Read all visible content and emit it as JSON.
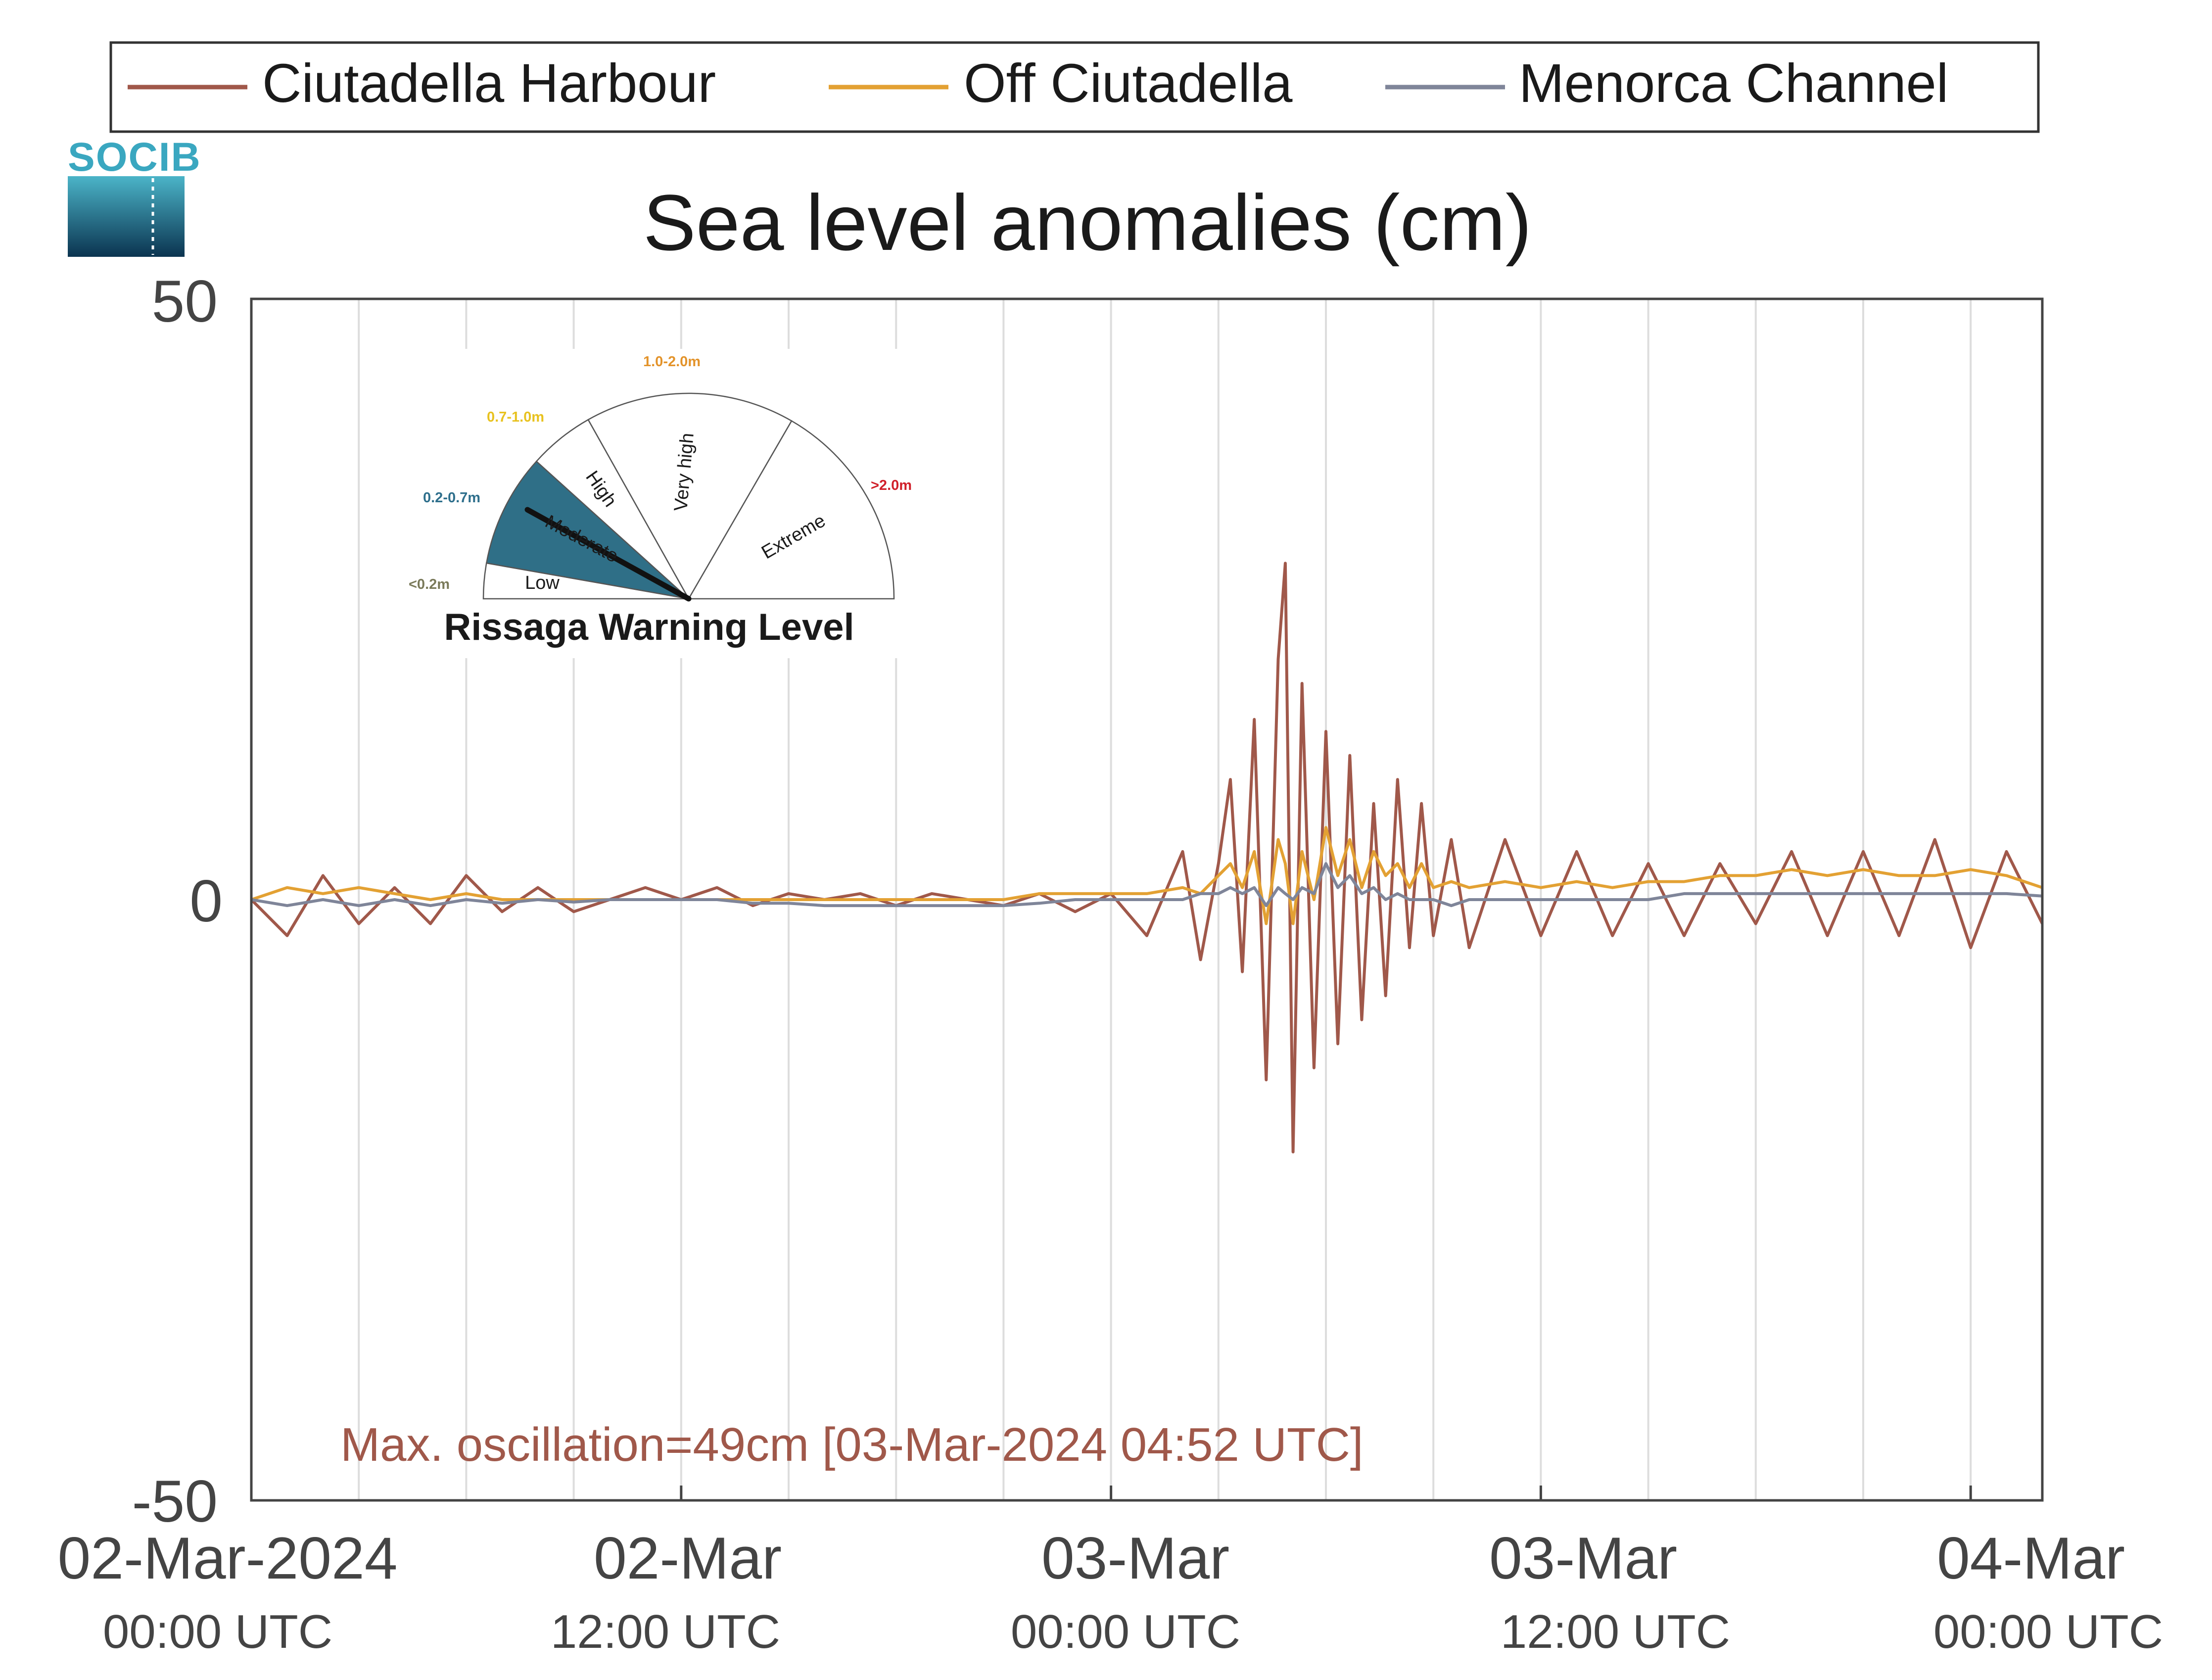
{
  "logo": {
    "text": "SOCIB",
    "color_top": "#3aa7c0",
    "color_bottom": "#0d3a55"
  },
  "legend": {
    "placement": "top",
    "items": [
      {
        "label": "Ciutadella Harbour",
        "color": "#a0584a"
      },
      {
        "label": "Off Ciutadella",
        "color": "#e3a133"
      },
      {
        "label": "Menorca Channel",
        "color": "#7f8599"
      }
    ]
  },
  "gauge": {
    "title": "Rissaga Warning Level",
    "current_level": "Moderate",
    "levels": [
      {
        "name": "Low",
        "range": "<0.2m",
        "range_color": "#7a7a5a"
      },
      {
        "name": "Moderate",
        "range": "0.2-0.7m",
        "range_color": "#2e6f8c",
        "fill": "#2f6f87"
      },
      {
        "name": "High",
        "range": "0.7-1.0m",
        "range_color": "#e8c21f"
      },
      {
        "name": "Very high",
        "range": "1.0-2.0m",
        "range_color": "#e3932a"
      },
      {
        "name": "Extreme",
        "range": ">2.0m",
        "range_color": "#d0202a"
      }
    ]
  },
  "annotation": {
    "text": "Max. oscillation=49cm [03-Mar-2024 04:52 UTC]",
    "color": "#a0584a"
  },
  "chart_data": {
    "type": "line",
    "title": "Sea level anomalies (cm)",
    "xlabel": "",
    "ylabel": "",
    "ylim": [
      -50,
      50
    ],
    "xlim": [
      "2024-03-02 00:00",
      "2024-03-04 02:00"
    ],
    "yticks": [
      "50",
      "0",
      "-50"
    ],
    "xticks": [
      {
        "at": "2024-03-02 00:00",
        "line1": "02-Mar-2024",
        "line2": "00:00 UTC"
      },
      {
        "at": "2024-03-02 12:00",
        "line1": "02-Mar",
        "line2": "12:00 UTC"
      },
      {
        "at": "2024-03-03 00:00",
        "line1": "03-Mar",
        "line2": "00:00 UTC"
      },
      {
        "at": "2024-03-03 12:00",
        "line1": "03-Mar",
        "line2": "12:00 UTC"
      },
      {
        "at": "2024-03-04 00:00",
        "line1": "04-Mar",
        "line2": "00:00 UTC"
      }
    ],
    "grid": "vertical every 3 hours",
    "x": [
      "2024-03-02 00:00",
      "2024-03-02 01:00",
      "2024-03-02 02:00",
      "2024-03-02 03:00",
      "2024-03-02 04:00",
      "2024-03-02 05:00",
      "2024-03-02 06:00",
      "2024-03-02 07:00",
      "2024-03-02 08:00",
      "2024-03-02 09:00",
      "2024-03-02 10:00",
      "2024-03-02 11:00",
      "2024-03-02 12:00",
      "2024-03-02 13:00",
      "2024-03-02 14:00",
      "2024-03-02 15:00",
      "2024-03-02 16:00",
      "2024-03-02 17:00",
      "2024-03-02 18:00",
      "2024-03-02 19:00",
      "2024-03-02 20:00",
      "2024-03-02 21:00",
      "2024-03-02 22:00",
      "2024-03-02 23:00",
      "2024-03-03 00:00",
      "2024-03-03 01:00",
      "2024-03-03 02:00",
      "2024-03-03 02:30",
      "2024-03-03 03:00",
      "2024-03-03 03:20",
      "2024-03-03 03:40",
      "2024-03-03 04:00",
      "2024-03-03 04:20",
      "2024-03-03 04:40",
      "2024-03-03 04:52",
      "2024-03-03 05:05",
      "2024-03-03 05:20",
      "2024-03-03 05:40",
      "2024-03-03 06:00",
      "2024-03-03 06:20",
      "2024-03-03 06:40",
      "2024-03-03 07:00",
      "2024-03-03 07:20",
      "2024-03-03 07:40",
      "2024-03-03 08:00",
      "2024-03-03 08:20",
      "2024-03-03 08:40",
      "2024-03-03 09:00",
      "2024-03-03 09:30",
      "2024-03-03 10:00",
      "2024-03-03 11:00",
      "2024-03-03 12:00",
      "2024-03-03 13:00",
      "2024-03-03 14:00",
      "2024-03-03 15:00",
      "2024-03-03 16:00",
      "2024-03-03 17:00",
      "2024-03-03 18:00",
      "2024-03-03 19:00",
      "2024-03-03 20:00",
      "2024-03-03 21:00",
      "2024-03-03 22:00",
      "2024-03-03 23:00",
      "2024-03-04 00:00",
      "2024-03-04 01:00",
      "2024-03-04 02:00"
    ],
    "series": [
      {
        "name": "Ciutadella Harbour",
        "color": "#a0584a",
        "values": [
          0,
          -3,
          2,
          -2,
          1,
          -2,
          2,
          -1,
          1,
          -1,
          0,
          1,
          0,
          1,
          -0.5,
          0.5,
          0,
          0.5,
          -0.5,
          0.5,
          0,
          -0.5,
          0.5,
          -1,
          0.5,
          -3,
          4,
          -5,
          3,
          10,
          -6,
          15,
          -15,
          20,
          28,
          -21,
          18,
          -14,
          14,
          -12,
          12,
          -10,
          8,
          -8,
          10,
          -4,
          8,
          -3,
          5,
          -4,
          5,
          -3,
          4,
          -3,
          3,
          -3,
          3,
          -2,
          4,
          -3,
          4,
          -3,
          5,
          -4,
          4,
          -2
        ]
      },
      {
        "name": "Off Ciutadella",
        "color": "#e3a133",
        "values": [
          0,
          1,
          0.5,
          1,
          0.5,
          0,
          0.5,
          0,
          0,
          0,
          0,
          0,
          0,
          0,
          0,
          0,
          0,
          0,
          0,
          0,
          0,
          0,
          0.5,
          0.5,
          0.5,
          0.5,
          1,
          0.5,
          2,
          3,
          1,
          4,
          -2,
          5,
          3,
          -2,
          4,
          0,
          6,
          2,
          5,
          1,
          4,
          2,
          3,
          1,
          3,
          1,
          1.5,
          1,
          1.5,
          1,
          1.5,
          1,
          1.5,
          1.5,
          2,
          2,
          2.5,
          2,
          2.5,
          2,
          2,
          2.5,
          2,
          1
        ]
      },
      {
        "name": "Menorca Channel",
        "color": "#7f8599",
        "values": [
          0,
          -0.5,
          0,
          -0.5,
          0,
          -0.5,
          0,
          -0.3,
          0,
          -0.2,
          0,
          0,
          0,
          0,
          -0.3,
          -0.3,
          -0.5,
          -0.5,
          -0.5,
          -0.5,
          -0.5,
          -0.5,
          -0.3,
          0,
          0,
          0,
          0,
          0.5,
          0.5,
          1,
          0.5,
          1,
          -0.5,
          1,
          0.5,
          0,
          1,
          0.5,
          3,
          1,
          2,
          0.5,
          1,
          0,
          0.5,
          0,
          0,
          0,
          -0.5,
          0,
          0,
          0,
          0,
          0,
          0,
          0.5,
          0.5,
          0.5,
          0.5,
          0.5,
          0.5,
          0.5,
          0.5,
          0.5,
          0.5,
          0.3
        ]
      }
    ]
  }
}
